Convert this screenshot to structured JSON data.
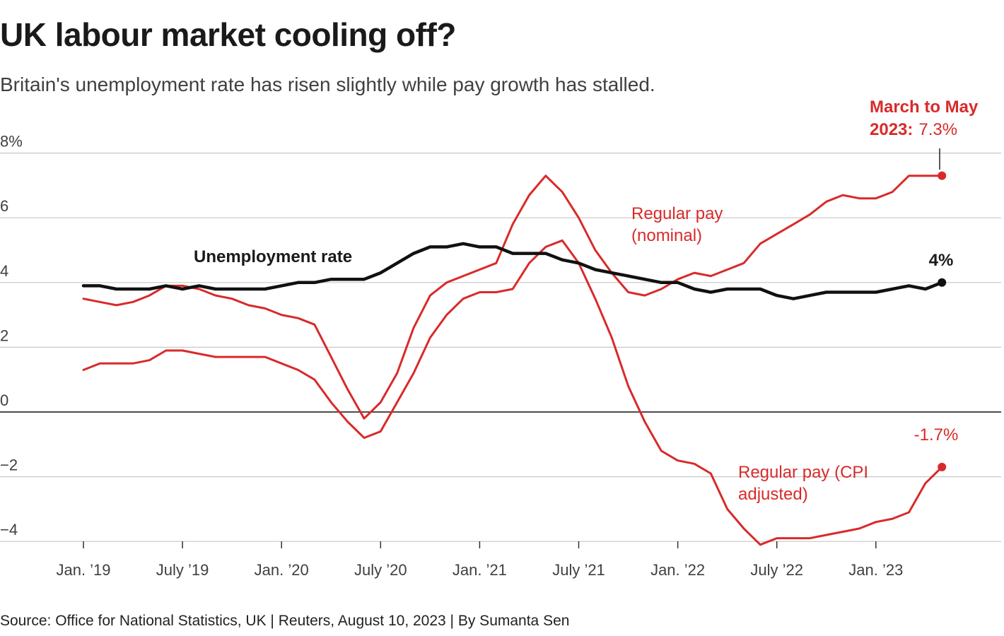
{
  "header": {
    "title": "UK labour market cooling off?",
    "subtitle": "Britain's unemployment rate has risen slightly while pay growth has stalled."
  },
  "footer": {
    "source": "Source: Office for National Statistics, UK | Reuters, August 10, 2023 | By Sumanta Sen"
  },
  "chart_data": {
    "type": "line",
    "title": "UK labour market cooling off?",
    "subtitle": "Britain's unemployment rate has risen slightly while pay growth has stalled.",
    "ylim": [
      -4,
      8
    ],
    "y_ticks": [
      -4,
      -2,
      0,
      2,
      4,
      6,
      8
    ],
    "y_tick_labels": [
      "−4",
      "−2",
      "0",
      "2",
      "4",
      "6",
      "8%"
    ],
    "x_tick_labels": [
      "Jan. ’19",
      "July ’19",
      "Jan. ’20",
      "July ’20",
      "Jan. ’21",
      "July ’21",
      "Jan. ’22",
      "July ’22",
      "Jan. ’23"
    ],
    "x_tick_months": [
      "2019-01",
      "2019-07",
      "2020-01",
      "2020-07",
      "2021-01",
      "2021-07",
      "2022-01",
      "2022-07",
      "2023-01"
    ],
    "grid": true,
    "colors": {
      "unemployment": "#111111",
      "pay": "#d92a2a"
    },
    "x": [
      "2019-01",
      "2019-02",
      "2019-03",
      "2019-04",
      "2019-05",
      "2019-06",
      "2019-07",
      "2019-08",
      "2019-09",
      "2019-10",
      "2019-11",
      "2019-12",
      "2020-01",
      "2020-02",
      "2020-03",
      "2020-04",
      "2020-05",
      "2020-06",
      "2020-07",
      "2020-08",
      "2020-09",
      "2020-10",
      "2020-11",
      "2020-12",
      "2021-01",
      "2021-02",
      "2021-03",
      "2021-04",
      "2021-05",
      "2021-06",
      "2021-07",
      "2021-08",
      "2021-09",
      "2021-10",
      "2021-11",
      "2021-12",
      "2022-01",
      "2022-02",
      "2022-03",
      "2022-04",
      "2022-05",
      "2022-06",
      "2022-07",
      "2022-08",
      "2022-09",
      "2022-10",
      "2022-11",
      "2022-12",
      "2023-01",
      "2023-02",
      "2023-03",
      "2023-04",
      "2023-05"
    ],
    "series": [
      {
        "key": "unemployment",
        "name": "Unemployment rate",
        "values": [
          3.9,
          3.9,
          3.8,
          3.8,
          3.8,
          3.9,
          3.8,
          3.9,
          3.8,
          3.8,
          3.8,
          3.8,
          3.9,
          4.0,
          4.0,
          4.1,
          4.1,
          4.1,
          4.3,
          4.6,
          4.9,
          5.1,
          5.1,
          5.2,
          5.1,
          5.1,
          4.9,
          4.9,
          4.9,
          4.7,
          4.6,
          4.4,
          4.3,
          4.2,
          4.1,
          4.0,
          4.0,
          3.8,
          3.7,
          3.8,
          3.8,
          3.8,
          3.6,
          3.5,
          3.6,
          3.7,
          3.7,
          3.7,
          3.7,
          3.8,
          3.9,
          3.8,
          4.0
        ]
      },
      {
        "key": "nominal",
        "name": "Regular pay (nominal)",
        "values": [
          3.5,
          3.4,
          3.3,
          3.4,
          3.6,
          3.9,
          3.9,
          3.8,
          3.6,
          3.5,
          3.3,
          3.2,
          3.0,
          2.9,
          2.7,
          1.7,
          0.7,
          -0.2,
          0.3,
          1.2,
          2.6,
          3.6,
          4.0,
          4.2,
          4.4,
          4.6,
          5.8,
          6.7,
          7.3,
          6.8,
          6.0,
          5.0,
          4.3,
          3.7,
          3.6,
          3.8,
          4.1,
          4.3,
          4.2,
          4.4,
          4.6,
          5.2,
          5.5,
          5.8,
          6.1,
          6.5,
          6.7,
          6.6,
          6.6,
          6.8,
          7.3,
          7.3,
          7.3
        ]
      },
      {
        "key": "cpi",
        "name": "Regular pay (CPI adjusted)",
        "values": [
          1.3,
          1.5,
          1.5,
          1.5,
          1.6,
          1.9,
          1.9,
          1.8,
          1.7,
          1.7,
          1.7,
          1.7,
          1.5,
          1.3,
          1.0,
          0.3,
          -0.3,
          -0.8,
          -0.6,
          0.3,
          1.2,
          2.3,
          3.0,
          3.5,
          3.7,
          3.7,
          3.8,
          4.6,
          5.1,
          5.3,
          4.6,
          3.5,
          2.3,
          0.8,
          -0.3,
          -1.2,
          -1.5,
          -1.6,
          -1.9,
          -3.0,
          -3.6,
          -4.1,
          -3.9,
          -3.9,
          -3.9,
          -3.8,
          -3.7,
          -3.6,
          -3.4,
          -3.3,
          -3.1,
          -2.2,
          -1.7
        ]
      }
    ],
    "labels": {
      "unemployment": "Unemployment rate",
      "nominal_line1": "Regular pay",
      "nominal_line2": "(nominal)",
      "cpi_line1": "Regular pay (CPI",
      "cpi_line2": "adjusted)",
      "end_unemployment": "4%",
      "end_cpi": "-1.7%",
      "callout_line1": "March to May",
      "callout_bold": "2023:",
      "callout_value": "7.3%"
    }
  }
}
